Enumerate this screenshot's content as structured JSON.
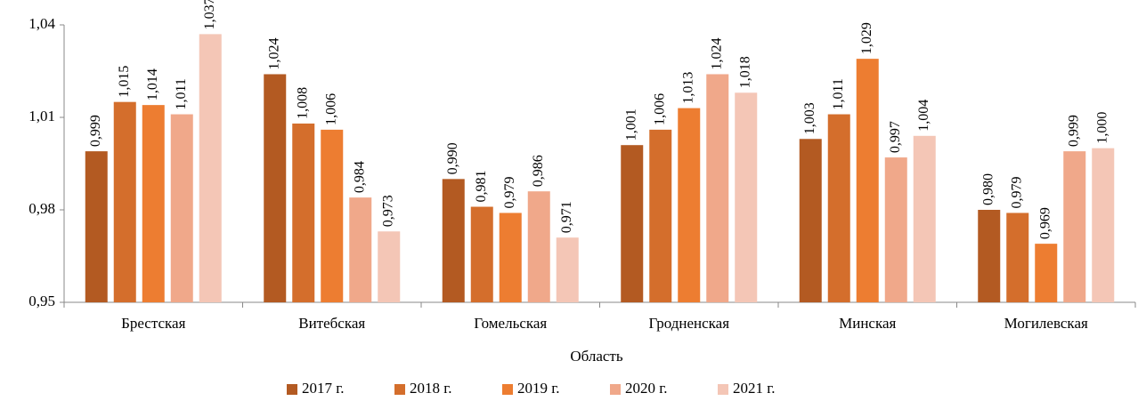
{
  "chart_data": {
    "type": "bar",
    "x_label": "Область",
    "categories": [
      "Брестская",
      "Витебская",
      "Гомельская",
      "Гродненская",
      "Минская",
      "Могилевская"
    ],
    "series": [
      {
        "name": "2017 г.",
        "color": "#b35a22",
        "values": [
          0.999,
          1.024,
          0.99,
          1.001,
          1.003,
          0.98
        ],
        "value_labels": [
          "0,999",
          "1,024",
          "0,990",
          "1,001",
          "1,003",
          "0,980"
        ]
      },
      {
        "name": "2018 г.",
        "color": "#d46e2c",
        "values": [
          1.015,
          1.008,
          0.981,
          1.006,
          1.011,
          0.979
        ],
        "value_labels": [
          "1,015",
          "1,008",
          "0,981",
          "1,006",
          "1,011",
          "0,979"
        ]
      },
      {
        "name": "2019 г.",
        "color": "#ed7d31",
        "values": [
          1.014,
          1.006,
          0.979,
          1.013,
          1.029,
          0.969
        ],
        "value_labels": [
          "1,014",
          "1,006",
          "0,979",
          "1,013",
          "1,029",
          "0,969"
        ]
      },
      {
        "name": "2020 г.",
        "color": "#f0a88a",
        "values": [
          1.011,
          0.984,
          0.986,
          1.024,
          0.997,
          0.999
        ],
        "value_labels": [
          "1,011",
          "0,984",
          "0,986",
          "1,024",
          "0,997",
          "0,999"
        ]
      },
      {
        "name": "2021 г.",
        "color": "#f4c6b6",
        "values": [
          1.037,
          0.973,
          0.971,
          1.018,
          1.004,
          1.0
        ],
        "value_labels": [
          "1,037",
          "0,973",
          "0,971",
          "1,018",
          "1,004",
          "1,000"
        ]
      }
    ],
    "ylim": [
      0.95,
      1.04
    ],
    "yticks": [
      {
        "value": 0.95,
        "label": "0,95"
      },
      {
        "value": 0.98,
        "label": "0,98"
      },
      {
        "value": 1.01,
        "label": "1,01"
      },
      {
        "value": 1.04,
        "label": "1,04"
      }
    ],
    "grid": false,
    "legend": "bottom"
  }
}
